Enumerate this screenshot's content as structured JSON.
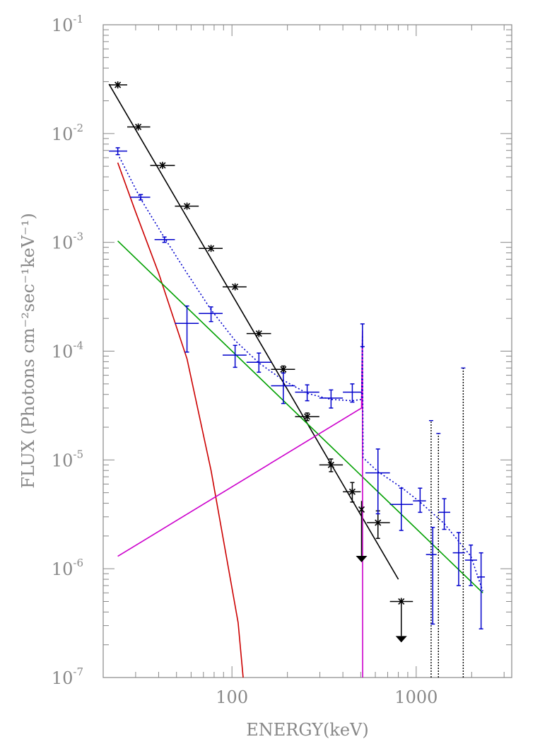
{
  "chart_data": {
    "type": "scatter",
    "title": "",
    "xlabel": "ENERGY(keV)",
    "ylabel": "FLUX (Photons cm⁻²sec⁻¹keV⁻¹)",
    "x_scale": "log",
    "y_scale": "log",
    "xlim": [
      20,
      3300
    ],
    "ylim": [
      1e-07,
      0.1
    ],
    "grid": false,
    "legend": "none",
    "x_tick_labels": [
      {
        "value": 100,
        "label": "100"
      },
      {
        "value": 1000,
        "label": "1000"
      }
    ],
    "y_tick_labels": [
      {
        "value": 1e-07,
        "base": "10",
        "exp": "-7"
      },
      {
        "value": 1e-06,
        "base": "10",
        "exp": "-6"
      },
      {
        "value": 1e-05,
        "base": "10",
        "exp": "-5"
      },
      {
        "value": 0.0001,
        "base": "10",
        "exp": "-4"
      },
      {
        "value": 0.001,
        "base": "10",
        "exp": "-3"
      },
      {
        "value": 0.01,
        "base": "10",
        "exp": "-2"
      },
      {
        "value": 0.1,
        "base": "10",
        "exp": "-1"
      }
    ],
    "series": [
      {
        "kind": "points",
        "color": "#000000",
        "marker": "asterisk",
        "points": [
          {
            "x": 24,
            "xlo": 21.5,
            "xhi": 27,
            "y": 0.028
          },
          {
            "x": 31,
            "xlo": 27,
            "xhi": 36,
            "y": 0.0115
          },
          {
            "x": 42,
            "xlo": 36,
            "xhi": 49,
            "y": 0.0051
          },
          {
            "x": 57,
            "xlo": 49,
            "xhi": 66,
            "y": 0.00215
          },
          {
            "x": 77,
            "xlo": 66,
            "xhi": 89,
            "y": 0.00088
          },
          {
            "x": 104,
            "xlo": 89,
            "xhi": 120,
            "y": 0.00039
          },
          {
            "x": 140,
            "xlo": 120,
            "xhi": 163,
            "y": 0.000145
          },
          {
            "x": 190,
            "xlo": 163,
            "xhi": 220,
            "y": 6.8e-05,
            "ylo": 6.3e-05,
            "yhi": 7.3e-05
          },
          {
            "x": 256,
            "xlo": 220,
            "xhi": 298,
            "y": 2.5e-05,
            "ylo": 2.3e-05,
            "yhi": 2.7e-05
          },
          {
            "x": 345,
            "xlo": 298,
            "xhi": 400,
            "y": 9e-06,
            "ylo": 7.8e-06,
            "yhi": 1.02e-05
          },
          {
            "x": 450,
            "xlo": 400,
            "xhi": 500,
            "y": 5.1e-06,
            "ylo": 4.1e-06,
            "yhi": 6.2e-06
          },
          {
            "x": 505,
            "xlo": 500,
            "xhi": 511,
            "y": 3.5e-06,
            "ylo": 1.2e-06,
            "yhi": 4.2e-06,
            "upper_limit": true
          },
          {
            "x": 620,
            "xlo": 540,
            "xhi": 720,
            "y": 2.65e-06,
            "ylo": 1.9e-06,
            "yhi": 3.4e-06
          },
          {
            "x": 830,
            "xlo": 720,
            "xhi": 960,
            "y": 5e-07,
            "arrow_to": 2.2e-07,
            "upper_limit": true
          }
        ]
      },
      {
        "kind": "points",
        "color": "#0000cc",
        "marker": "cross",
        "points": [
          {
            "x": 24,
            "xlo": 21.5,
            "xhi": 27,
            "y": 0.0069,
            "ylo": 0.0064,
            "yhi": 0.0074
          },
          {
            "x": 32,
            "xlo": 28,
            "xhi": 36,
            "y": 0.0026,
            "ylo": 0.00245,
            "yhi": 0.00275
          },
          {
            "x": 43,
            "xlo": 38,
            "xhi": 49,
            "y": 0.00106,
            "ylo": 0.001,
            "yhi": 0.00112
          },
          {
            "x": 57,
            "xlo": 49,
            "xhi": 66,
            "y": 0.00018,
            "ylo": 9.8e-05,
            "yhi": 0.00026
          },
          {
            "x": 77,
            "xlo": 66,
            "xhi": 89,
            "y": 0.000222,
            "ylo": 0.000187,
            "yhi": 0.000255
          },
          {
            "x": 104,
            "xlo": 89,
            "xhi": 120,
            "y": 9.2e-05,
            "ylo": 7.1e-05,
            "yhi": 0.000113
          },
          {
            "x": 140,
            "xlo": 120,
            "xhi": 163,
            "y": 7.9e-05,
            "ylo": 6.4e-05,
            "yhi": 9.6e-05
          },
          {
            "x": 190,
            "xlo": 163,
            "xhi": 220,
            "y": 4.8e-05,
            "ylo": 3.3e-05,
            "yhi": 6.3e-05
          },
          {
            "x": 256,
            "xlo": 220,
            "xhi": 298,
            "y": 4.2e-05,
            "ylo": 3.5e-05,
            "yhi": 4.9e-05
          },
          {
            "x": 345,
            "xlo": 298,
            "xhi": 400,
            "y": 3.7e-05,
            "ylo": 3e-05,
            "yhi": 4.4e-05
          },
          {
            "x": 450,
            "xlo": 400,
            "xhi": 505,
            "y": 4.2e-05,
            "ylo": 3.4e-05,
            "yhi": 5e-05
          },
          {
            "x": 511,
            "y": 0.000145,
            "ylo": 0.00011,
            "yhi": 0.000178
          },
          {
            "x": 620,
            "xlo": 530,
            "xhi": 720,
            "y": 7.6e-06,
            "ylo": 3.2e-06,
            "yhi": 1.26e-05
          },
          {
            "x": 830,
            "xlo": 720,
            "xhi": 960,
            "y": 3.9e-06,
            "ylo": 2.25e-06,
            "yhi": 5.5e-06
          },
          {
            "x": 1050,
            "xlo": 960,
            "xhi": 1130,
            "y": 4.2e-06,
            "ylo": 3.3e-06,
            "yhi": 5.5e-06
          },
          {
            "x": 1230,
            "xlo": 1130,
            "xhi": 1290,
            "y": 1.35e-06,
            "ylo": 3.1e-07,
            "yhi": 2.4e-06
          },
          {
            "x": 1420,
            "xlo": 1320,
            "xhi": 1530,
            "y": 3.3e-06,
            "ylo": 2.3e-06,
            "yhi": 4.4e-06
          },
          {
            "x": 1700,
            "xlo": 1580,
            "xhi": 1840,
            "y": 1.4e-06,
            "ylo": 7e-07,
            "yhi": 2.15e-06
          },
          {
            "x": 1980,
            "xlo": 1840,
            "xhi": 2140,
            "y": 1.2e-06,
            "ylo": 7e-07,
            "yhi": 1.65e-06
          },
          {
            "x": 2250,
            "xlo": 2140,
            "xhi": 2360,
            "y": 8.4e-07,
            "ylo": 2.8e-07,
            "yhi": 1.4e-06
          }
        ]
      },
      {
        "kind": "line",
        "color": "#000000",
        "style": "solid",
        "points": [
          [
            21.5,
            0.0285
          ],
          [
            800,
            8e-07
          ]
        ]
      },
      {
        "kind": "line",
        "color": "#cc0000",
        "style": "solid",
        "points": [
          [
            24,
            0.0054
          ],
          [
            30,
            0.0019
          ],
          [
            40,
            0.00052
          ],
          [
            57,
            8.5e-05
          ],
          [
            77,
            8e-06
          ],
          [
            108,
            3.2e-07
          ],
          [
            115,
            1e-07
          ]
        ]
      },
      {
        "kind": "line",
        "color": "#00a000",
        "style": "solid",
        "points": [
          [
            24,
            0.00103
          ],
          [
            2300,
            6e-07
          ]
        ]
      },
      {
        "kind": "line",
        "color": "#cc00cc",
        "style": "solid",
        "points": [
          [
            24,
            1.3e-06
          ],
          [
            505,
            3e-05
          ],
          [
            511,
            0.000155
          ],
          [
            512,
            1e-07
          ]
        ]
      },
      {
        "kind": "line",
        "color": "#0000cc",
        "style": "dotted",
        "points": [
          [
            24,
            0.0065
          ],
          [
            32,
            0.0025
          ],
          [
            43,
            0.0011
          ],
          [
            57,
            0.00052
          ],
          [
            77,
            0.00024
          ],
          [
            104,
            0.000125
          ],
          [
            140,
            7.8e-05
          ],
          [
            190,
            5.4e-05
          ],
          [
            256,
            4.1e-05
          ],
          [
            345,
            3.6e-05
          ],
          [
            450,
            3.5e-05
          ],
          [
            505,
            3.6e-05
          ],
          [
            511,
            0.00014
          ],
          [
            515,
            1.05e-05
          ],
          [
            620,
            7.8e-06
          ],
          [
            830,
            5.6e-06
          ],
          [
            1050,
            4.1e-06
          ],
          [
            1420,
            2.6e-06
          ],
          [
            1980,
            1.3e-06
          ],
          [
            2300,
            6.2e-07
          ]
        ]
      },
      {
        "kind": "vlines",
        "color": "#000000",
        "style": "dotted",
        "lines": [
          {
            "x": 1205,
            "y_top": 2.3e-05
          },
          {
            "x": 1320,
            "y_top": 1.75e-05
          },
          {
            "x": 1800,
            "y_top": 7e-05
          }
        ]
      }
    ]
  }
}
